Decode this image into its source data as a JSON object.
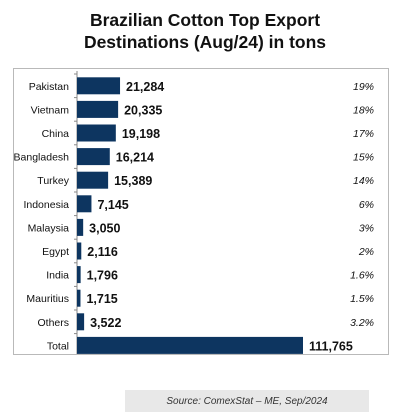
{
  "title_line1": "Brazilian Cotton Top Export",
  "title_line2": "Destinations (Aug/24) in tons",
  "source": "Source: ComexStat – ME, Sep/2024",
  "colors": {
    "bar": "#0d3560",
    "text": "#111111",
    "border": "#b9b9b9"
  },
  "chart_data": {
    "type": "bar",
    "orientation": "horizontal",
    "title": "Brazilian Cotton Top Export Destinations (Aug/24) in tons",
    "categories": [
      "Pakistan",
      "Vietnam",
      "China",
      "Bangladesh",
      "Turkey",
      "Indonesia",
      "Malaysia",
      "Egypt",
      "India",
      "Mauritius",
      "Others",
      "Total"
    ],
    "values": [
      21284,
      20335,
      19198,
      16214,
      15389,
      7145,
      3050,
      2116,
      1796,
      1715,
      3522,
      111765
    ],
    "value_labels": [
      "21,284",
      "20,335",
      "19,198",
      "16,214",
      "15,389",
      "7,145",
      "3,050",
      "2,116",
      "1,796",
      "1,715",
      "3,522",
      "111,765"
    ],
    "shares": [
      "19%",
      "18%",
      "17%",
      "15%",
      "14%",
      "6%",
      "3%",
      "2%",
      "1.6%",
      "1.5%",
      "3.2%",
      ""
    ],
    "xlim": [
      0,
      111765
    ],
    "grid": false,
    "legend": "none"
  }
}
